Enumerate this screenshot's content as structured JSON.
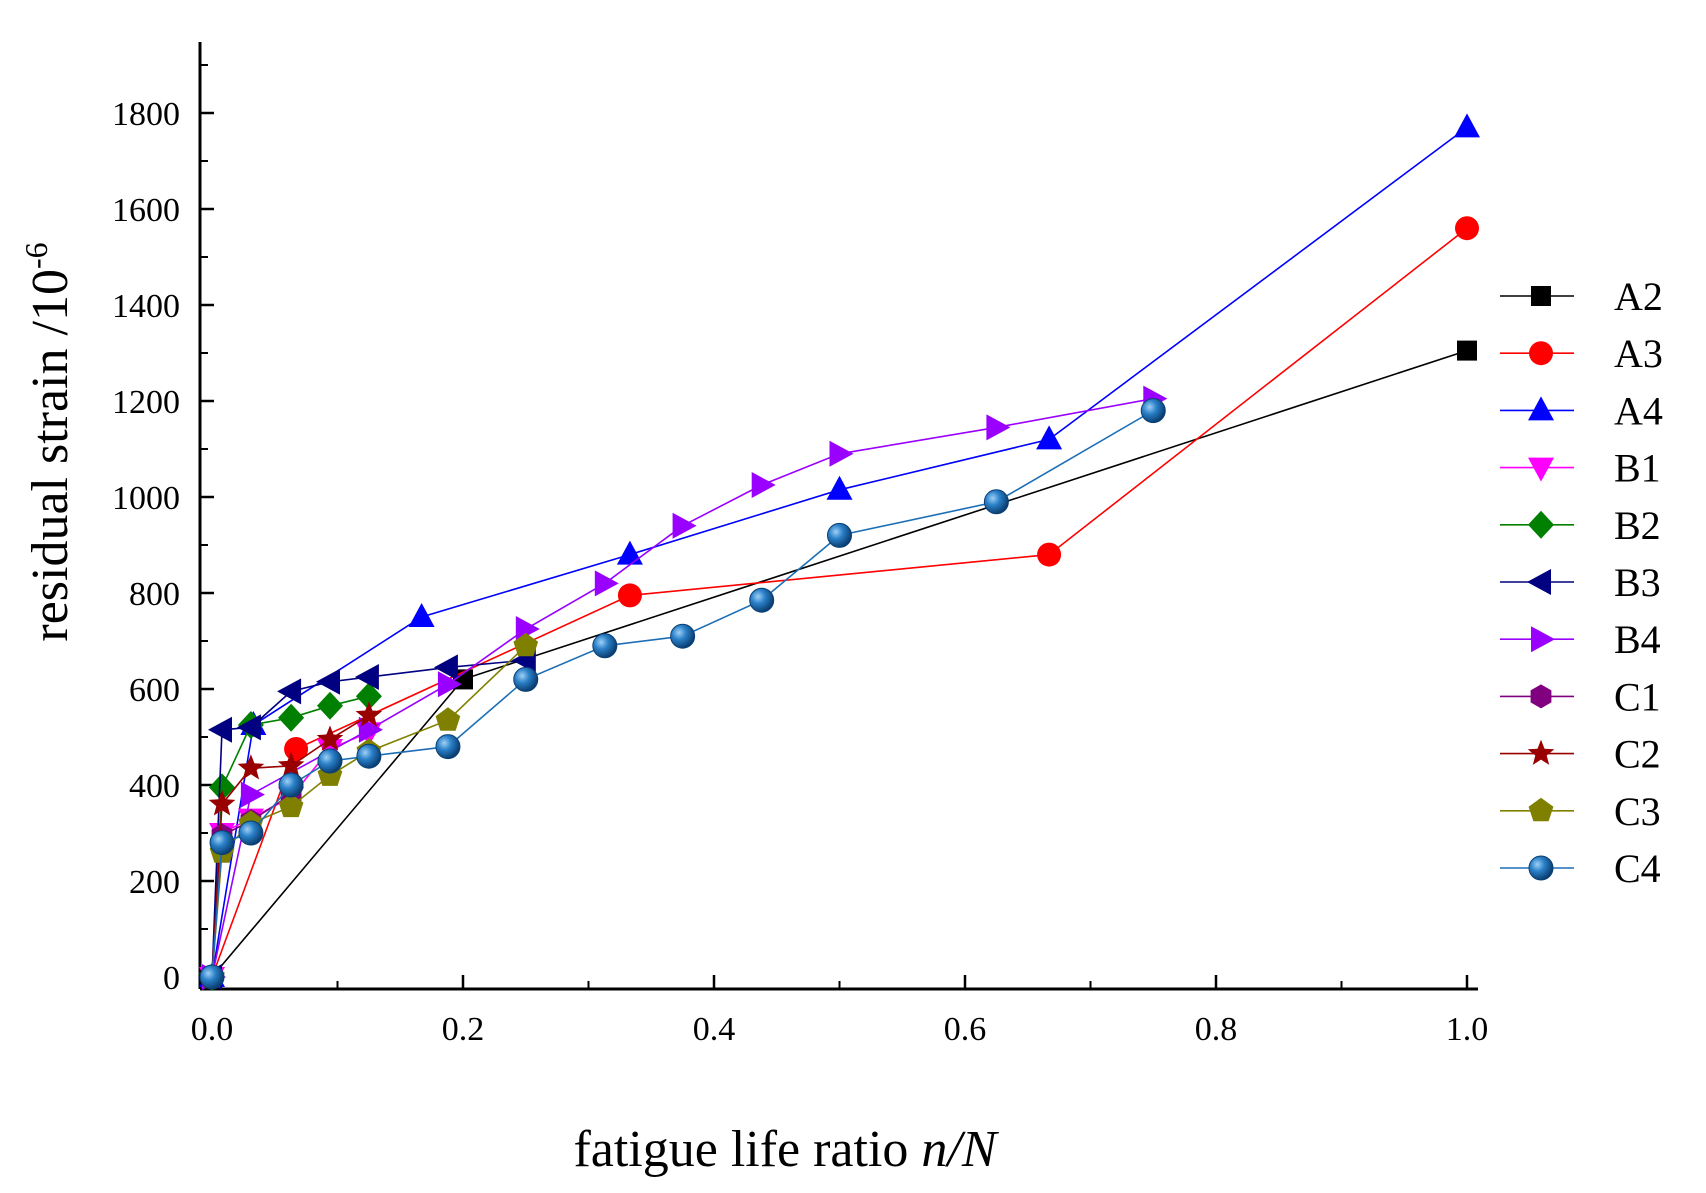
{
  "chart_data": {
    "type": "line",
    "title": "",
    "xlabel": "fatigue life ratio ",
    "xlabel_italic": "n/N",
    "ylabel": "residual strain /10",
    "ylabel_superscript": "-6",
    "xlim": [
      0.0,
      1.0
    ],
    "ylim": [
      0,
      1900
    ],
    "xticks": [
      0.0,
      0.2,
      0.4,
      0.6,
      0.8,
      1.0
    ],
    "xtick_labels": [
      "0.0",
      "0.2",
      "0.4",
      "0.6",
      "0.8",
      "1.0"
    ],
    "yticks": [
      0,
      200,
      400,
      600,
      800,
      1000,
      1200,
      1400,
      1600,
      1800
    ],
    "ytick_labels": [
      "0",
      "200",
      "400",
      "600",
      "800",
      "1000",
      "1200",
      "1400",
      "1600",
      "1800"
    ],
    "legend_position": "right",
    "series": [
      {
        "name": "A2",
        "color": "#000000",
        "marker": "square",
        "x": [
          0.0,
          0.2,
          1.0
        ],
        "y": [
          0,
          620,
          1305
        ]
      },
      {
        "name": "A3",
        "color": "#ff0000",
        "marker": "circle",
        "x": [
          0.0,
          0.067,
          0.333,
          0.667,
          1.0
        ],
        "y": [
          0,
          475,
          795,
          880,
          1560
        ]
      },
      {
        "name": "A4",
        "color": "#0000ff",
        "marker": "triangle-up",
        "x": [
          0.0,
          0.033,
          0.167,
          0.333,
          0.5,
          0.667,
          1.0
        ],
        "y": [
          0,
          525,
          750,
          880,
          1015,
          1120,
          1770
        ]
      },
      {
        "name": "B1",
        "color": "#ff00ff",
        "marker": "triangle-down",
        "x": [
          0.0,
          0.008,
          0.031,
          0.063,
          0.094,
          0.125
        ],
        "y": [
          0,
          300,
          330,
          375,
          475,
          510
        ]
      },
      {
        "name": "B2",
        "color": "#008000",
        "marker": "diamond",
        "x": [
          0.0,
          0.008,
          0.031,
          0.063,
          0.094,
          0.125
        ],
        "y": [
          0,
          395,
          525,
          540,
          565,
          585
        ]
      },
      {
        "name": "B3",
        "color": "#000080",
        "marker": "triangle-left",
        "x": [
          0.0,
          0.008,
          0.031,
          0.063,
          0.094,
          0.125,
          0.188,
          0.25
        ],
        "y": [
          0,
          515,
          520,
          595,
          615,
          625,
          645,
          660
        ]
      },
      {
        "name": "B4",
        "color": "#9900ff",
        "marker": "triangle-right",
        "x": [
          0.0,
          0.031,
          0.125,
          0.188,
          0.25,
          0.313,
          0.375,
          0.438,
          0.5,
          0.625,
          0.75
        ],
        "y": [
          0,
          380,
          515,
          610,
          725,
          820,
          940,
          1025,
          1090,
          1145,
          1205
        ]
      },
      {
        "name": "C1",
        "color": "#800080",
        "marker": "hexagon",
        "x": [
          0.0,
          0.008,
          0.031,
          0.063
        ],
        "y": [
          0,
          295,
          325,
          380
        ]
      },
      {
        "name": "C2",
        "color": "#990000",
        "marker": "star",
        "x": [
          0.0,
          0.008,
          0.031,
          0.063,
          0.094,
          0.125
        ],
        "y": [
          0,
          360,
          435,
          440,
          495,
          545
        ]
      },
      {
        "name": "C3",
        "color": "#808000",
        "marker": "pentagon",
        "x": [
          0.0,
          0.008,
          0.031,
          0.063,
          0.094,
          0.125,
          0.188,
          0.25
        ],
        "y": [
          0,
          260,
          320,
          355,
          420,
          470,
          535,
          690
        ]
      },
      {
        "name": "C4",
        "color": "#1c6fb5",
        "marker": "sphere",
        "x": [
          0.0,
          0.008,
          0.031,
          0.063,
          0.094,
          0.125,
          0.188,
          0.25,
          0.313,
          0.375,
          0.438,
          0.5,
          0.625,
          0.75
        ],
        "y": [
          0,
          280,
          300,
          400,
          450,
          460,
          480,
          620,
          690,
          710,
          785,
          920,
          990,
          1180
        ]
      }
    ]
  }
}
